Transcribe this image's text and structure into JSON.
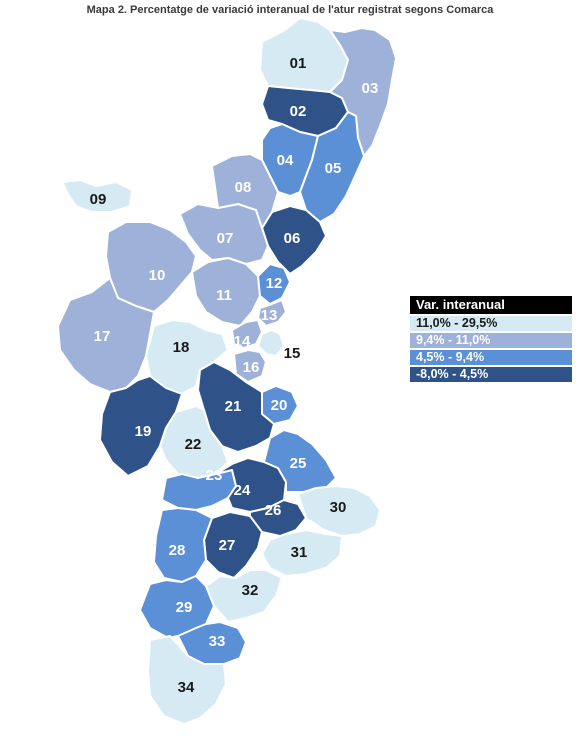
{
  "title": "Mapa 2. Percentatge de variació interanual de l'atur registrat segons Comarca",
  "legend": {
    "title": "Var. interanual",
    "classes": [
      {
        "label": "11,0% - 29,5%",
        "color": "#d6eaf3",
        "text_color": "#1a1a1a"
      },
      {
        "label": "9,4% - 11,0%",
        "color": "#9db1d9",
        "text_color": "#ffffff"
      },
      {
        "label": "4,5% - 9,4%",
        "color": "#5b8fd6",
        "text_color": "#ffffff"
      },
      {
        "label": "-8,0% - 4,5%",
        "color": "#2f5389",
        "text_color": "#ffffff"
      }
    ]
  },
  "regions": [
    {
      "id": "01",
      "class": 0
    },
    {
      "id": "02",
      "class": 3
    },
    {
      "id": "03",
      "class": 1
    },
    {
      "id": "04",
      "class": 2
    },
    {
      "id": "05",
      "class": 2
    },
    {
      "id": "06",
      "class": 3
    },
    {
      "id": "07",
      "class": 1
    },
    {
      "id": "08",
      "class": 1
    },
    {
      "id": "09",
      "class": 0
    },
    {
      "id": "10",
      "class": 1
    },
    {
      "id": "11",
      "class": 1
    },
    {
      "id": "12",
      "class": 2
    },
    {
      "id": "13",
      "class": 1
    },
    {
      "id": "14",
      "class": 1
    },
    {
      "id": "15",
      "class": 0
    },
    {
      "id": "16",
      "class": 1
    },
    {
      "id": "17",
      "class": 1
    },
    {
      "id": "18",
      "class": 0
    },
    {
      "id": "19",
      "class": 3
    },
    {
      "id": "20",
      "class": 2
    },
    {
      "id": "21",
      "class": 3
    },
    {
      "id": "22",
      "class": 0
    },
    {
      "id": "23",
      "class": 2
    },
    {
      "id": "24",
      "class": 3
    },
    {
      "id": "25",
      "class": 2
    },
    {
      "id": "26",
      "class": 3
    },
    {
      "id": "27",
      "class": 3
    },
    {
      "id": "28",
      "class": 2
    },
    {
      "id": "29",
      "class": 2
    },
    {
      "id": "30",
      "class": 0
    },
    {
      "id": "31",
      "class": 0
    },
    {
      "id": "32",
      "class": 0
    },
    {
      "id": "33",
      "class": 2
    },
    {
      "id": "34",
      "class": 0
    }
  ]
}
